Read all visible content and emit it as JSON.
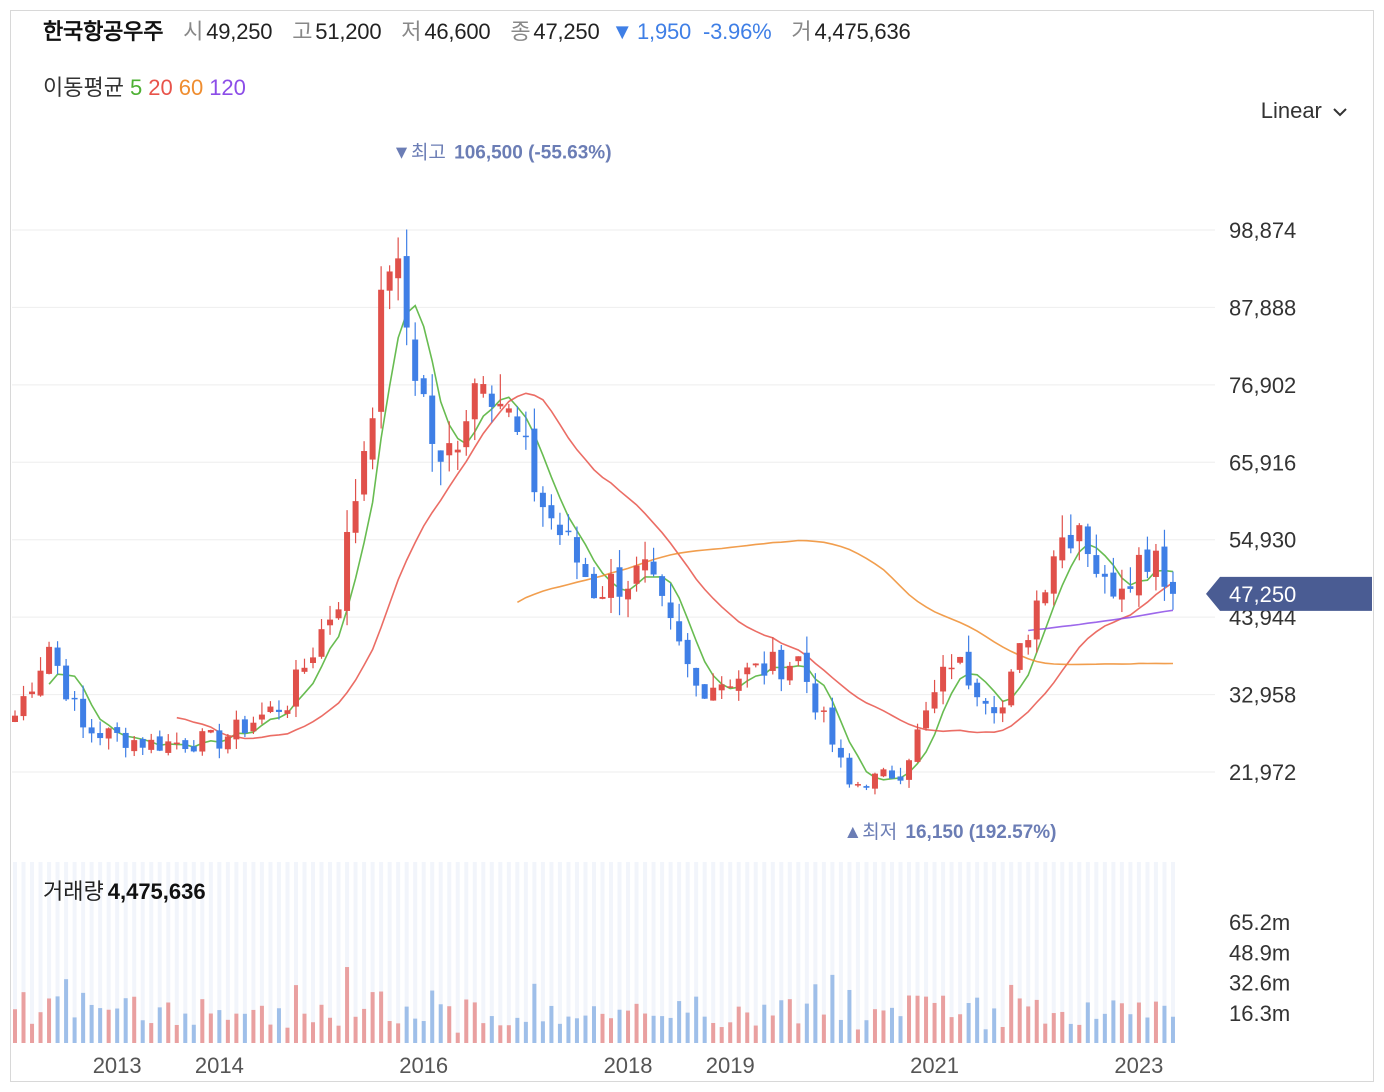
{
  "header": {
    "name": "한국항공우주",
    "open_label": "시",
    "open": "49,250",
    "high_label": "고",
    "high": "51,200",
    "low_label": "저",
    "low": "46,600",
    "close_label": "종",
    "close": "47,250",
    "change_arrow": "▼",
    "change": "1,950",
    "change_pct": "-3.96%",
    "volume_label": "거",
    "volume": "4,475,636"
  },
  "ma_legend": {
    "title": "이동평균",
    "periods": [
      "5",
      "20",
      "60",
      "120"
    ]
  },
  "scale": {
    "label": "Linear",
    "icon": "chevron-down-icon"
  },
  "volume_panel": {
    "label": "거래량",
    "value": "4,475,636"
  },
  "colors": {
    "up": "#e0504a",
    "down": "#3f7fe6",
    "ma5": "#4db033",
    "ma20": "#e8534a",
    "ma60": "#ef8d2f",
    "ma120": "#8c4de8",
    "current_badge": "#4a5c93",
    "annotation": "#6b7db5",
    "vol_up": "#e9a0a0",
    "vol_down": "#9fbfe9"
  },
  "chart_data": {
    "type": "candlestick",
    "interval": "monthly",
    "y_ticks": [
      "98,874",
      "87,888",
      "76,902",
      "65,916",
      "54,930",
      "43,944",
      "32,958",
      "21,972"
    ],
    "y_tick_values": [
      98874,
      87888,
      76902,
      65916,
      54930,
      43944,
      32958,
      21972
    ],
    "x_labels": [
      "2013",
      "2014",
      "2016",
      "2018",
      "2019",
      "2021",
      "2023"
    ],
    "vol_ticks": [
      "65.2m",
      "48.9m",
      "32.6m",
      "16.3m"
    ],
    "vol_tick_values": [
      65.2,
      48.9,
      32.6,
      16.3
    ],
    "current_price": {
      "label": "47,250",
      "value": 47250
    },
    "max_annotation": {
      "label": "▼최고",
      "value_text": "106,500 (-55.63%)",
      "value": 106500
    },
    "min_annotation": {
      "label": "▲최저",
      "value_text": "16,150 (192.57%)",
      "value": 16150
    },
    "key_closes": [
      {
        "date": "2012-01",
        "close": 30000
      },
      {
        "date": "2012-05",
        "close": 40000
      },
      {
        "date": "2012-09",
        "close": 28000
      },
      {
        "date": "2013-05",
        "close": 26000
      },
      {
        "date": "2014-01",
        "close": 26500
      },
      {
        "date": "2014-09",
        "close": 32000
      },
      {
        "date": "2015-03",
        "close": 47000
      },
      {
        "date": "2015-07",
        "close": 76000
      },
      {
        "date": "2015-09",
        "close": 96000
      },
      {
        "date": "2016-03",
        "close": 64000
      },
      {
        "date": "2016-08",
        "close": 81000
      },
      {
        "date": "2017-03",
        "close": 60000
      },
      {
        "date": "2017-09",
        "close": 48000
      },
      {
        "date": "2018-03",
        "close": 50000
      },
      {
        "date": "2018-09",
        "close": 34000
      },
      {
        "date": "2019-03",
        "close": 36000
      },
      {
        "date": "2019-09",
        "close": 38000
      },
      {
        "date": "2020-03",
        "close": 20000
      },
      {
        "date": "2020-09",
        "close": 22000
      },
      {
        "date": "2021-03",
        "close": 38000
      },
      {
        "date": "2021-09",
        "close": 31000
      },
      {
        "date": "2022-03",
        "close": 54000
      },
      {
        "date": "2022-06",
        "close": 58000
      },
      {
        "date": "2022-09",
        "close": 48000
      },
      {
        "date": "2023-03",
        "close": 54000
      },
      {
        "date": "2023-05",
        "close": 47250
      }
    ]
  }
}
